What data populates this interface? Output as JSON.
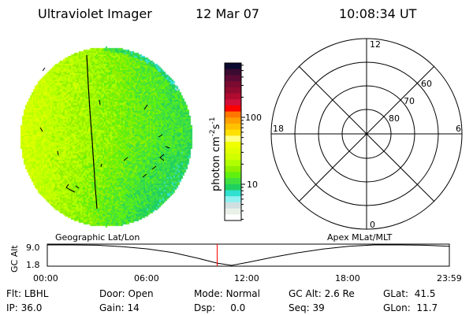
{
  "header": {
    "title": "Ultraviolet Imager",
    "date": "12 Mar 07",
    "time": "10:08:34 UT"
  },
  "colorbar": {
    "label": "photon cm",
    "label_sup1": "-2",
    "label_s": "s",
    "label_sup2": "-1",
    "scale": "log",
    "ticks": [
      "100",
      "10"
    ],
    "colors": [
      "#0b0b30",
      "#3a0a30",
      "#5a0a35",
      "#7a0a30",
      "#900a30",
      "#b00a30",
      "#d0103a",
      "#ff0000",
      "#ff7700",
      "#ffa000",
      "#ffc000",
      "#ffe000",
      "#ffff80",
      "#f0ff00",
      "#e0ff00",
      "#d0ff00",
      "#b0ff00",
      "#90f000",
      "#60f010",
      "#40e040",
      "#20d060",
      "#30e0d0",
      "#90f0f0",
      "#d0e0e0",
      "#e8f0e8",
      "#ffffff"
    ]
  },
  "polar": {
    "mlt_labels": {
      "top": "12",
      "bottom": "0",
      "left": "18",
      "right": "6"
    },
    "lat_labels": [
      "80",
      "70",
      "60"
    ]
  },
  "altitude_plot": {
    "left_title": "Geographic Lat/Lon",
    "right_title": "Apex MLat/MLT",
    "ylabel": "GC Alt",
    "yticks": [
      "9.0",
      "1.8"
    ],
    "xticks": [
      "00:00",
      "06:00",
      "12:00",
      "18:00",
      "23:59"
    ],
    "marker_color": "#ff0000"
  },
  "chart_data": {
    "type": "line",
    "ylabel": "GC Alt",
    "xticks": [
      "00:00",
      "06:00",
      "12:00",
      "18:00",
      "23:59"
    ],
    "yticks": [
      9.0,
      1.8
    ],
    "ylim": [
      1.8,
      9.0
    ],
    "x_hours": [
      0,
      1.5,
      3,
      4.5,
      6,
      7.5,
      9,
      10.13,
      11,
      12,
      13.5,
      15,
      16.5,
      18,
      19.5,
      21,
      22.5,
      23.98
    ],
    "y_re": [
      9.0,
      9.0,
      8.9,
      8.4,
      7.6,
      6.3,
      4.3,
      2.6,
      1.8,
      2.9,
      4.7,
      6.3,
      7.6,
      8.5,
      9.0,
      9.0,
      8.9,
      8.5
    ],
    "marker_time_hours": 10.14
  },
  "info": {
    "row1": [
      {
        "label": "Flt:",
        "value": "LBHL"
      },
      {
        "label": "Door:",
        "value": "Open"
      },
      {
        "label": "Mode:",
        "value": "Normal"
      },
      {
        "label": "GC Alt:",
        "value": "2.6 Re"
      },
      {
        "label": "GLat:",
        "value": "41.5"
      }
    ],
    "row2": [
      {
        "label": "IP:",
        "value": "36.0"
      },
      {
        "label": "Gain:",
        "value": "14"
      },
      {
        "label": "Dsp:",
        "value": "0.0"
      },
      {
        "label": "Seq:",
        "value": "39"
      },
      {
        "label": "GLon:",
        "value": "11.7"
      }
    ]
  }
}
